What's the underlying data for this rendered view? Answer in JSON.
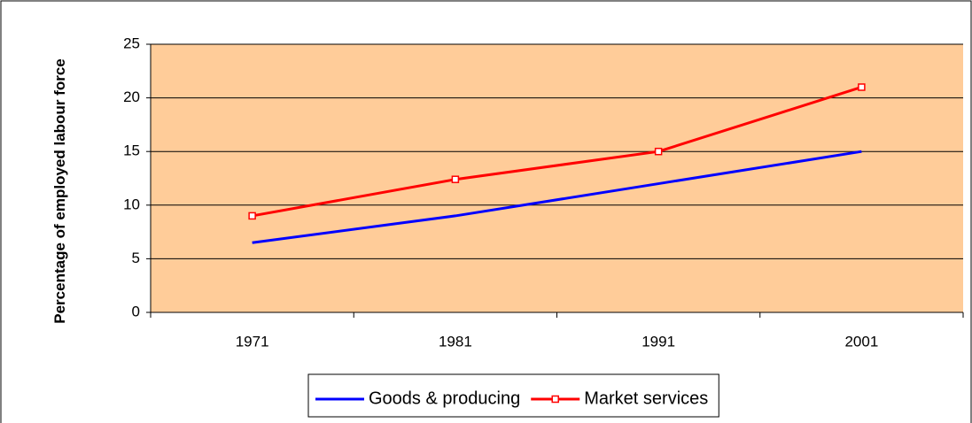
{
  "chart_data": {
    "type": "line",
    "y_label": "Percentage of employed labour force",
    "categories": [
      "1971",
      "1981",
      "1991",
      "2001"
    ],
    "series": [
      {
        "name": "Goods & producing",
        "color": "#0000ff",
        "marker": false,
        "values": [
          6.5,
          9,
          12,
          15
        ]
      },
      {
        "name": "Market services",
        "color": "#ff0000",
        "marker": true,
        "values": [
          9,
          12.4,
          15,
          21
        ]
      }
    ],
    "ylim": [
      0,
      25
    ],
    "yticks": [
      0,
      5,
      10,
      15,
      20,
      25
    ],
    "grid": true,
    "plot_background": "#ffcc99",
    "legend": "bottom"
  }
}
